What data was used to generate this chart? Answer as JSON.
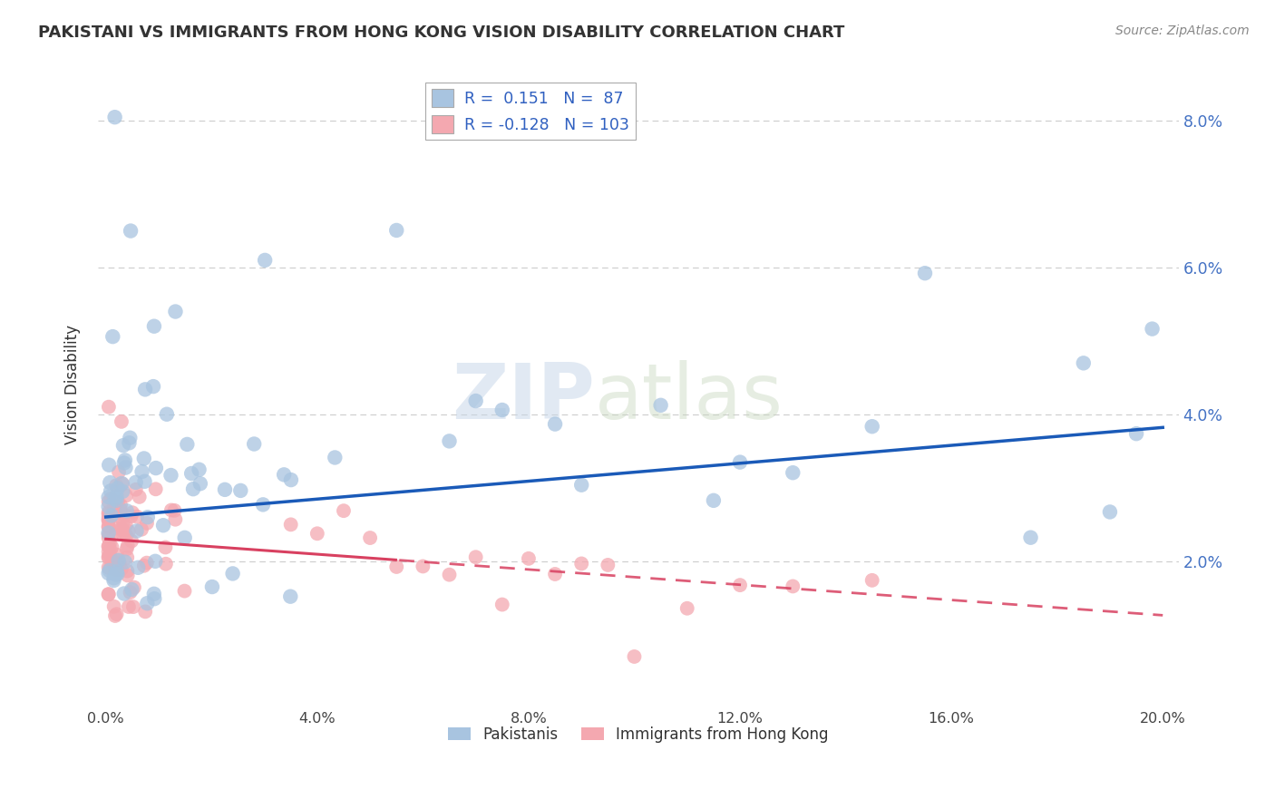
{
  "title": "PAKISTANI VS IMMIGRANTS FROM HONG KONG VISION DISABILITY CORRELATION CHART",
  "source": "Source: ZipAtlas.com",
  "ylabel": "Vision Disability",
  "x_min": 0.0,
  "x_max": 20.0,
  "y_min": 0.0,
  "y_max": 8.8,
  "y_ticks": [
    2.0,
    4.0,
    6.0,
    8.0
  ],
  "blue_R": 0.151,
  "blue_N": 87,
  "pink_R": -0.128,
  "pink_N": 103,
  "blue_color": "#a8c4e0",
  "pink_color": "#f4a8b0",
  "blue_line_color": "#1a5ab8",
  "pink_line_color": "#d84060",
  "legend_label_blue": "Pakistanis",
  "legend_label_pink": "Immigrants from Hong Kong",
  "watermark_zip": "ZIP",
  "watermark_atlas": "atlas",
  "background_color": "#ffffff"
}
